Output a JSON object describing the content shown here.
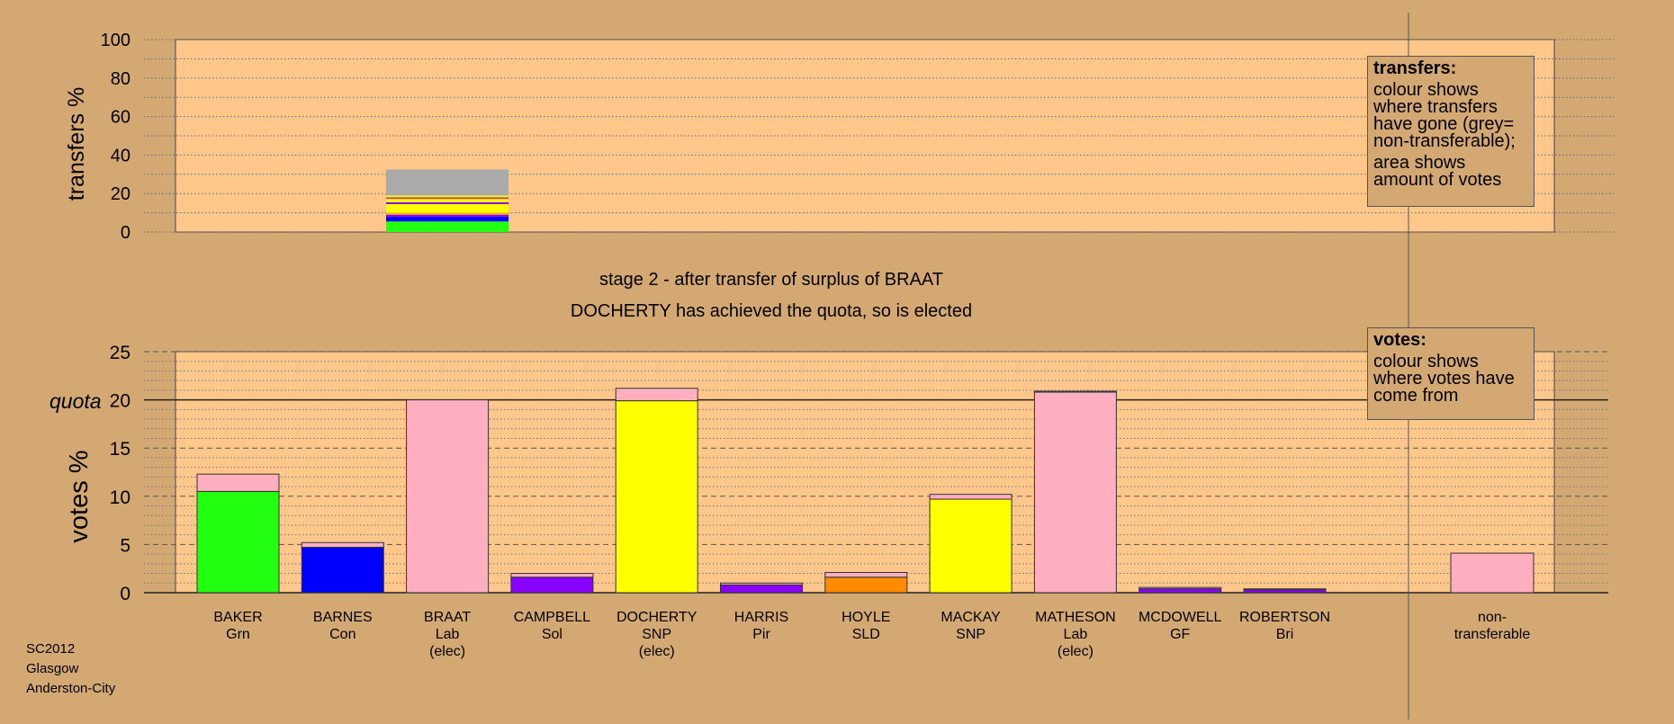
{
  "transfers_chart": {
    "ylabel": "transfers %",
    "yticks": [
      "0",
      "20",
      "40",
      "60",
      "80",
      "100"
    ],
    "ylim": [
      0,
      100
    ]
  },
  "stage_text": {
    "line1": "stage 2 - after transfer of surplus of BRAAT",
    "line2": "DOCHERTY has achieved the quota, so is elected"
  },
  "votes_chart": {
    "ylabel": "votes %",
    "quota_label": "quota",
    "yticks": [
      "0",
      "5",
      "10",
      "15",
      "20",
      "25"
    ],
    "ylim": [
      0,
      25
    ]
  },
  "legend_transfers": {
    "title": "transfers:",
    "p1": "colour shows where transfers have gone (grey= non-transferable);",
    "p2": "area shows amount of votes"
  },
  "legend_votes": {
    "title": "votes:",
    "p1": "colour shows where votes have come from"
  },
  "footer": {
    "line1": "SC2012",
    "line2": "Glasgow",
    "line3": "Anderston-City"
  },
  "chart_data": [
    {
      "type": "bar",
      "chart": "transfers",
      "ylim": [
        0,
        100
      ],
      "source_candidate": "BRAAT",
      "segments": [
        {
          "color": "#22ff11",
          "value": 5.5
        },
        {
          "color": "#0000ff",
          "value": 2.5
        },
        {
          "color": "#8800ff",
          "value": 1.0
        },
        {
          "color": "#ffaa00",
          "value": 1.0
        },
        {
          "color": "#ffff00",
          "value": 4.5
        },
        {
          "color": "#8800ff",
          "value": 1.0
        },
        {
          "color": "#ffff00",
          "value": 1.5
        },
        {
          "color": "#ffaa00",
          "value": 0.5
        },
        {
          "color": "#8800ff",
          "value": 0.5
        },
        {
          "color": "#ffff00",
          "value": 1.0
        },
        {
          "color": "#aaaaaa",
          "value": 13.5
        }
      ]
    },
    {
      "type": "bar",
      "chart": "votes",
      "ylim": [
        0,
        25
      ],
      "quota": 20,
      "candidates": [
        {
          "name": "BAKER",
          "party": "Grn",
          "note": "",
          "base_color": "#22ff11",
          "base": 10.5,
          "transfer": 1.8
        },
        {
          "name": "BARNES",
          "party": "Con",
          "note": "",
          "base_color": "#0000ff",
          "base": 4.7,
          "transfer": 0.5
        },
        {
          "name": "BRAAT",
          "party": "Lab",
          "note": "(elec)",
          "base_color": "#ffafc0",
          "base": 20.0,
          "transfer": 0
        },
        {
          "name": "CAMPBELL",
          "party": "Sol",
          "note": "",
          "base_color": "#8800ff",
          "base": 1.6,
          "transfer": 0.4
        },
        {
          "name": "DOCHERTY",
          "party": "SNP",
          "note": "(elec)",
          "base_color": "#ffff00",
          "base": 19.9,
          "transfer": 1.3
        },
        {
          "name": "HARRIS",
          "party": "Pir",
          "note": "",
          "base_color": "#8800ff",
          "base": 0.8,
          "transfer": 0.2
        },
        {
          "name": "HOYLE",
          "party": "SLD",
          "note": "",
          "base_color": "#ff8c00",
          "base": 1.6,
          "transfer": 0.5
        },
        {
          "name": "MACKAY",
          "party": "SNP",
          "note": "",
          "base_color": "#ffff00",
          "base": 9.7,
          "transfer": 0.5
        },
        {
          "name": "MATHESON",
          "party": "Lab",
          "note": "(elec)",
          "base_color": "#ffafc0",
          "base": 20.8,
          "transfer": 0.1
        },
        {
          "name": "MCDOWELL",
          "party": "GF",
          "note": "",
          "base_color": "#8800ff",
          "base": 0.4,
          "transfer": 0.15
        },
        {
          "name": "ROBERTSON",
          "party": "Bri",
          "note": "",
          "base_color": "#8800ff",
          "base": 0.3,
          "transfer": 0.1
        }
      ],
      "nontransferable": {
        "line1": "non-",
        "line2": "transferable",
        "color": "#ffafc0",
        "value": 4.1
      }
    }
  ],
  "colors": {
    "background": "#d4a872",
    "plot_area": "#ffc88a",
    "transfer_pink": "#ffafc0"
  }
}
